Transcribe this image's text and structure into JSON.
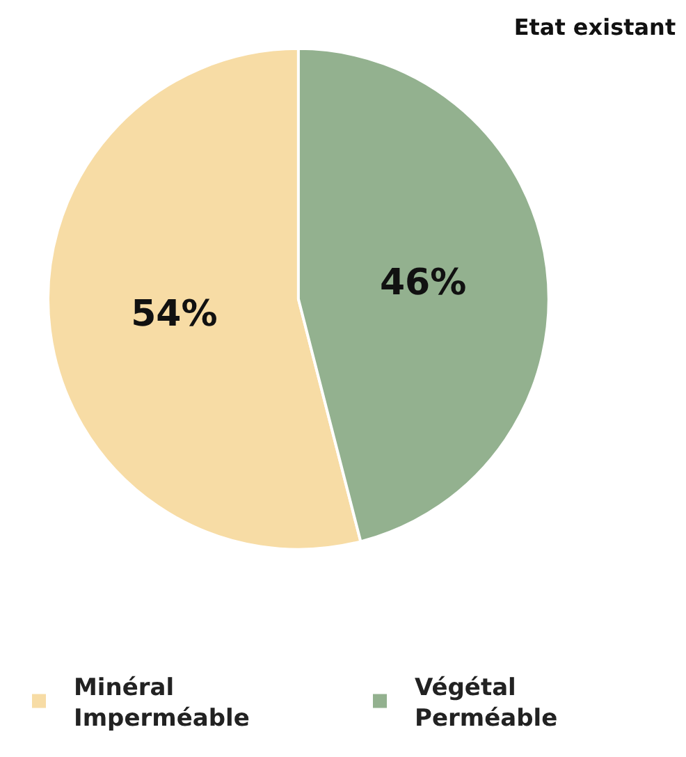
{
  "chart_data": {
    "type": "pie",
    "title": "Etat existant",
    "categories": [
      "Minéral Imperméable",
      "Végétal Perméable"
    ],
    "values": [
      54,
      46
    ],
    "colors": [
      "#f7dca5",
      "#93b18f"
    ],
    "value_labels": [
      "54%",
      "46%"
    ],
    "legend": "bottom"
  }
}
